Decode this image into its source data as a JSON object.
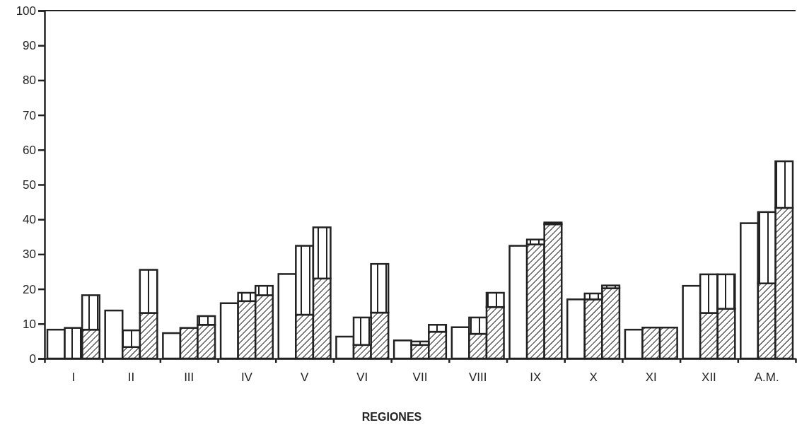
{
  "chart_data": {
    "type": "bar",
    "xlabel": "REGIONES",
    "categories": [
      null,
      "I",
      null,
      null,
      "II",
      null,
      null,
      "III",
      null,
      null,
      "IV",
      null,
      null,
      "V",
      null,
      null,
      "VI",
      null,
      null,
      "VII",
      null,
      null,
      "VIII",
      null,
      null,
      "IX",
      null,
      null,
      "X",
      null,
      null,
      "XI",
      null,
      null,
      "XII",
      null,
      null,
      "A.M.",
      null
    ],
    "stacked": true,
    "ylim": [
      0,
      100
    ],
    "yticks": [
      0,
      10,
      20,
      30,
      40,
      50,
      60,
      70,
      80,
      90,
      100
    ],
    "series": [
      {
        "color": "#ffffff",
        "values": [
          8.3,
          null,
          null,
          13.8,
          null,
          null,
          7.3,
          null,
          null,
          15.9,
          null,
          null,
          24.3,
          null,
          null,
          6.3,
          null,
          null,
          5.2,
          null,
          null,
          9.0,
          null,
          null,
          32.4,
          null,
          null,
          17.0,
          null,
          null,
          8.3,
          null,
          null,
          20.9,
          null,
          null,
          38.9,
          null,
          null
        ]
      },
      {
        "color": "#222222",
        "values": [
          null,
          null,
          8.3,
          null,
          3.3,
          13.1,
          null,
          8.8,
          9.7,
          null,
          16.5,
          18.2,
          null,
          12.6,
          23.0,
          null,
          3.9,
          13.2,
          null,
          3.9,
          7.7,
          null,
          7.1,
          14.8,
          null,
          32.8,
          38.6,
          null,
          17.0,
          20.2,
          null,
          8.9,
          8.9,
          null,
          13.1,
          14.3,
          null,
          21.6,
          43.3
        ]
      },
      {
        "color": "#222222",
        "values": [
          null,
          8.8,
          9.9,
          null,
          4.8,
          12.4,
          null,
          null,
          2.5,
          null,
          2.4,
          2.7,
          null,
          19.8,
          14.7,
          null,
          7.9,
          14.0,
          null,
          1.0,
          2.0,
          null,
          4.7,
          4.1,
          null,
          1.4,
          0.5,
          null,
          1.7,
          0.8,
          null,
          null,
          null,
          null,
          11.1,
          9.9,
          null,
          20.5,
          13.4
        ]
      }
    ]
  }
}
